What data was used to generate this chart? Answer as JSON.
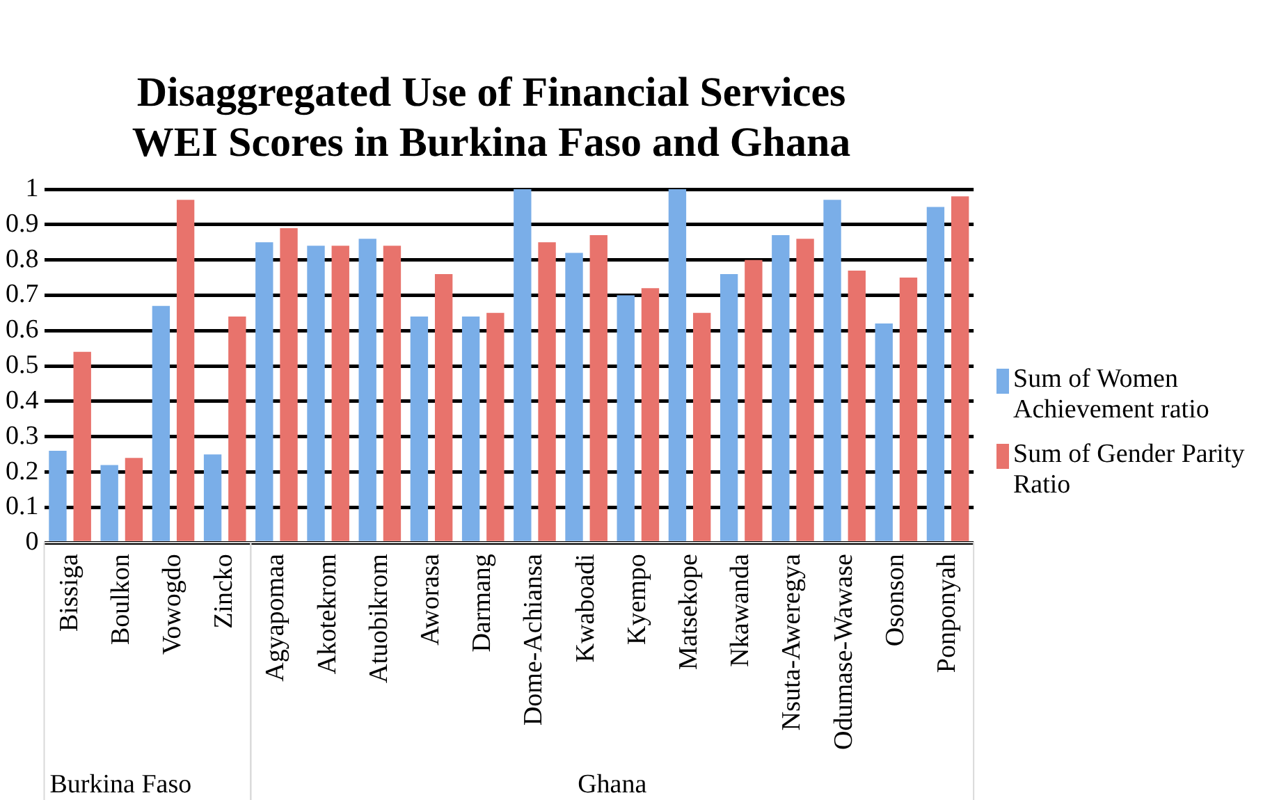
{
  "chart_data": {
    "type": "bar",
    "title": "Disaggregated Use of Financial Services WEI Scores in Burkina Faso and Ghana",
    "categories": [
      "Bissiga",
      "Boulkon",
      "Vowogdo",
      "Zincko",
      "Agyapomaa",
      "Akotekrom",
      "Atuobikrom",
      "Aworasa",
      "Darmang",
      "Dome-Achiansa",
      "Kwaboadi",
      "Kyempo",
      "Matsekope",
      "Nkawanda",
      "Nsuta-Aweregya",
      "Odumase-Wawase",
      "Osonson",
      "Ponponyah"
    ],
    "series": [
      {
        "name": "Sum of Women Achievement ratio",
        "color": "#7aaee8",
        "values": [
          0.26,
          0.22,
          0.67,
          0.25,
          0.85,
          0.84,
          0.86,
          0.64,
          0.64,
          1.0,
          0.82,
          0.7,
          1.0,
          0.76,
          0.87,
          0.97,
          0.62,
          0.95
        ]
      },
      {
        "name": "Sum of Gender Parity Ratio",
        "color": "#e8736c",
        "values": [
          0.54,
          0.24,
          0.97,
          0.64,
          0.89,
          0.84,
          0.84,
          0.76,
          0.65,
          0.85,
          0.87,
          0.72,
          0.65,
          0.8,
          0.86,
          0.77,
          0.75,
          0.98
        ]
      }
    ],
    "ylim": [
      0,
      1
    ],
    "yticks": [
      0,
      0.1,
      0.2,
      0.3,
      0.4,
      0.5,
      0.6,
      0.7,
      0.8,
      0.9,
      1
    ],
    "grid": "y",
    "legend": "right",
    "annotations": [
      "Burkina Faso",
      "Ghana"
    ]
  }
}
